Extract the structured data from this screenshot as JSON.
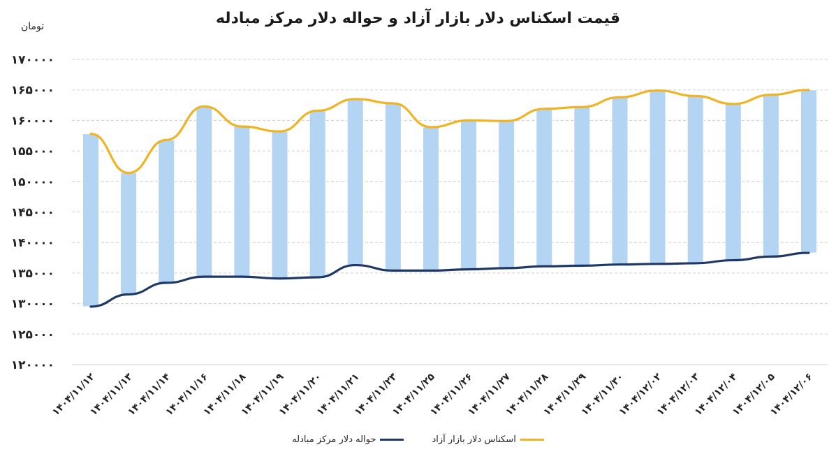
{
  "chart_data": {
    "type": "line",
    "title": "قیمت اسکناس دلار بازار آزاد و حواله دلار مرکز مبادله",
    "ylabel": "تومان",
    "ylim": [
      120000,
      170000
    ],
    "yticks": [
      120000,
      125000,
      130000,
      135000,
      140000,
      145000,
      150000,
      155000,
      160000,
      165000,
      170000
    ],
    "ytick_labels": [
      "۱۲۰۰۰۰",
      "۱۲۵۰۰۰",
      "۱۳۰۰۰۰",
      "۱۳۵۰۰۰",
      "۱۴۰۰۰۰",
      "۱۴۵۰۰۰",
      "۱۵۰۰۰۰",
      "۱۵۵۰۰۰",
      "۱۶۰۰۰۰",
      "۱۶۵۰۰۰",
      "۱۷۰۰۰۰"
    ],
    "categories": [
      "۱۴۰۴/۱۱/۱۲",
      "۱۴۰۴/۱۱/۱۳",
      "۱۴۰۴/۱۱/۱۴",
      "۱۴۰۴/۱۱/۱۶",
      "۱۴۰۴/۱۱/۱۸",
      "۱۴۰۴/۱۱/۱۹",
      "۱۴۰۴/۱۱/۲۰",
      "۱۴۰۴/۱۱/۲۱",
      "۱۴۰۴/۱۱/۲۳",
      "۱۴۰۴/۱۱/۲۵",
      "۱۴۰۴/۱۱/۲۶",
      "۱۴۰۴/۱۱/۲۷",
      "۱۴۰۴/۱۱/۲۸",
      "۱۴۰۴/۱۱/۲۹",
      "۱۴۰۴/۱۱/۳۰",
      "۱۴۰۴/۱۲/۰۲",
      "۱۴۰۴/۱۲/۰۳",
      "۱۴۰۴/۱۲/۰۴",
      "۱۴۰۴/۱۲/۰۵",
      "۱۴۰۴/۱۲/۰۶"
    ],
    "series": [
      {
        "name": "اسکناس دلار بازار آزاد",
        "color": "#f0b323",
        "values": [
          157800,
          151400,
          156800,
          162300,
          159000,
          158200,
          161600,
          163500,
          162800,
          158900,
          160000,
          159900,
          161900,
          162200,
          163800,
          164900,
          164000,
          162700,
          164200,
          165000
        ]
      },
      {
        "name": "حواله دلار مرکز مبادله",
        "color": "#1f3864",
        "values": [
          129500,
          131500,
          133400,
          134400,
          134400,
          134100,
          134300,
          136300,
          135400,
          135400,
          135600,
          135800,
          136100,
          136200,
          136400,
          136500,
          136600,
          137100,
          137700,
          138300
        ]
      }
    ],
    "bars": "range between the two series (light blue)",
    "bar_color": "#b4d4f3",
    "grid": true,
    "legend_position": "bottom"
  }
}
